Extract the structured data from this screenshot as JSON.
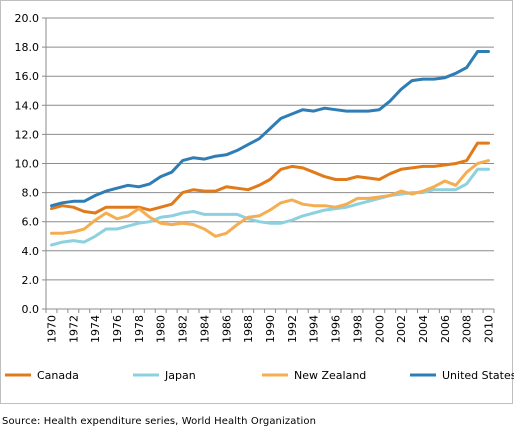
{
  "source_note": "Source: Health expenditure series, World Health Organization",
  "chart_data": {
    "type": "line",
    "title": "",
    "xlabel": "",
    "ylabel": "",
    "ylim": [
      0,
      20
    ],
    "y_ticks": [
      "0.0",
      "2.0",
      "4.0",
      "6.0",
      "8.0",
      "10.0",
      "12.0",
      "14.0",
      "16.0",
      "18.0",
      "20.0"
    ],
    "x": [
      1970,
      1971,
      1972,
      1973,
      1974,
      1975,
      1976,
      1977,
      1978,
      1979,
      1980,
      1981,
      1982,
      1983,
      1984,
      1985,
      1986,
      1987,
      1988,
      1989,
      1990,
      1991,
      1992,
      1993,
      1994,
      1995,
      1996,
      1997,
      1998,
      1999,
      2000,
      2001,
      2002,
      2003,
      2004,
      2005,
      2006,
      2007,
      2008,
      2009,
      2010
    ],
    "x_tick_labels": [
      "1970",
      "1972",
      "1974",
      "1976",
      "1978",
      "1980",
      "1982",
      "1984",
      "1986",
      "1988",
      "1990",
      "1992",
      "1994",
      "1996",
      "1998",
      "2000",
      "2002",
      "2004",
      "2006",
      "2008",
      "2010"
    ],
    "grid": "horizontal",
    "legend_position": "bottom",
    "series": [
      {
        "name": "Canada",
        "color": "#e07b1c",
        "values": [
          6.9,
          7.1,
          7.0,
          6.7,
          6.6,
          7.0,
          7.0,
          7.0,
          7.0,
          6.8,
          7.0,
          7.2,
          8.0,
          8.2,
          8.1,
          8.1,
          8.4,
          8.3,
          8.2,
          8.5,
          8.9,
          9.6,
          9.8,
          9.7,
          9.4,
          9.1,
          8.9,
          8.9,
          9.1,
          9.0,
          8.9,
          9.3,
          9.6,
          9.7,
          9.8,
          9.8,
          9.9,
          10.0,
          10.2,
          11.4,
          11.4
        ]
      },
      {
        "name": "Japan",
        "color": "#8dd0e0",
        "values": [
          4.4,
          4.6,
          4.7,
          4.6,
          5.0,
          5.5,
          5.5,
          5.7,
          5.9,
          6.0,
          6.3,
          6.4,
          6.6,
          6.7,
          6.5,
          6.5,
          6.5,
          6.5,
          6.2,
          6.0,
          5.9,
          5.9,
          6.1,
          6.4,
          6.6,
          6.8,
          6.9,
          7.0,
          7.2,
          7.4,
          7.6,
          7.8,
          7.9,
          8.0,
          8.0,
          8.2,
          8.2,
          8.2,
          8.6,
          9.6,
          9.6
        ]
      },
      {
        "name": "New Zealand",
        "color": "#f5ad52",
        "values": [
          5.2,
          5.2,
          5.3,
          5.5,
          6.1,
          6.6,
          6.2,
          6.4,
          6.9,
          6.3,
          5.9,
          5.8,
          5.9,
          5.8,
          5.5,
          5.0,
          5.2,
          5.8,
          6.3,
          6.4,
          6.8,
          7.3,
          7.5,
          7.2,
          7.1,
          7.1,
          7.0,
          7.2,
          7.6,
          7.6,
          7.7,
          7.8,
          8.1,
          7.9,
          8.1,
          8.4,
          8.8,
          8.5,
          9.4,
          10.0,
          10.2
        ]
      },
      {
        "name": "United States",
        "color": "#2f7db5",
        "values": [
          7.1,
          7.3,
          7.4,
          7.4,
          7.8,
          8.1,
          8.3,
          8.5,
          8.4,
          8.6,
          9.1,
          9.4,
          10.2,
          10.4,
          10.3,
          10.5,
          10.6,
          10.9,
          11.3,
          11.7,
          12.4,
          13.1,
          13.4,
          13.7,
          13.6,
          13.8,
          13.7,
          13.6,
          13.6,
          13.6,
          13.7,
          14.3,
          15.1,
          15.7,
          15.8,
          15.8,
          15.9,
          16.2,
          16.6,
          17.7,
          17.7
        ]
      }
    ]
  }
}
